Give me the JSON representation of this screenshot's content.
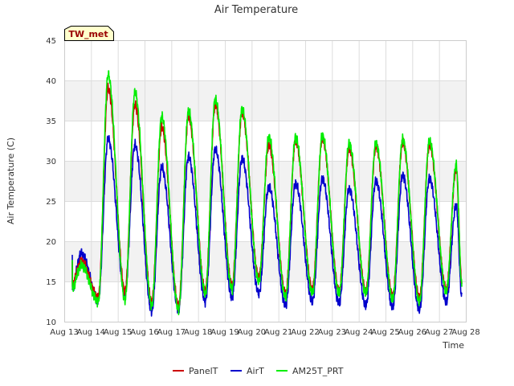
{
  "chart_data": {
    "type": "line",
    "title": "Air Temperature",
    "xlabel": "Time",
    "ylabel": "Air Temperature (C)",
    "station_tag": "TW_met",
    "ylim": [
      10,
      45
    ],
    "yticks": [
      10,
      15,
      20,
      25,
      30,
      35,
      40,
      45
    ],
    "xlim": [
      "2024-08-13",
      "2024-08-28"
    ],
    "xtick_labels": [
      "Aug 13",
      "Aug 14",
      "Aug 15",
      "Aug 16",
      "Aug 17",
      "Aug 18",
      "Aug 19",
      "Aug 20",
      "Aug 21",
      "Aug 22",
      "Aug 23",
      "Aug 24",
      "Aug 25",
      "Aug 26",
      "Aug 27",
      "Aug 28"
    ],
    "grid": true,
    "alternating_bands": true,
    "legend_position": "bottom-center",
    "day_start": "2024-08-13",
    "daily": [
      {
        "date": "2024-08-13",
        "min_air": 14.0,
        "max_air": 18.5,
        "min_panel": 14.5,
        "max_panel": 17.5,
        "min_am25t": 14.0,
        "max_am25t": 17.0
      },
      {
        "date": "2024-08-14",
        "min_air": 12.7,
        "max_air": 32.7,
        "min_panel": 13.0,
        "max_panel": 39.0,
        "min_am25t": 12.5,
        "max_am25t": 40.7
      },
      {
        "date": "2024-08-15",
        "min_air": 13.5,
        "max_air": 32.0,
        "min_panel": 13.8,
        "max_panel": 37.0,
        "min_am25t": 12.7,
        "max_am25t": 38.5
      },
      {
        "date": "2024-08-16",
        "min_air": 11.3,
        "max_air": 29.2,
        "min_panel": 12.5,
        "max_panel": 34.2,
        "min_am25t": 12.0,
        "max_am25t": 35.5
      },
      {
        "date": "2024-08-17",
        "min_air": 11.5,
        "max_air": 30.5,
        "min_panel": 12.0,
        "max_panel": 35.5,
        "min_am25t": 11.5,
        "max_am25t": 36.2
      },
      {
        "date": "2024-08-18",
        "min_air": 12.5,
        "max_air": 31.5,
        "min_panel": 13.8,
        "max_panel": 37.0,
        "min_am25t": 13.5,
        "max_am25t": 37.7
      },
      {
        "date": "2024-08-19",
        "min_air": 13.0,
        "max_air": 30.3,
        "min_panel": 14.5,
        "max_panel": 36.0,
        "min_am25t": 14.0,
        "max_am25t": 36.5
      },
      {
        "date": "2024-08-20",
        "min_air": 13.5,
        "max_air": 26.8,
        "min_panel": 15.5,
        "max_panel": 32.0,
        "min_am25t": 15.0,
        "max_am25t": 33.0
      },
      {
        "date": "2024-08-21",
        "min_air": 12.0,
        "max_air": 27.2,
        "min_panel": 13.5,
        "max_panel": 32.5,
        "min_am25t": 13.0,
        "max_am25t": 33.0
      },
      {
        "date": "2024-08-22",
        "min_air": 12.5,
        "max_air": 27.8,
        "min_panel": 14.0,
        "max_panel": 32.8,
        "min_am25t": 13.5,
        "max_am25t": 33.2
      },
      {
        "date": "2024-08-23",
        "min_air": 12.3,
        "max_air": 26.5,
        "min_panel": 13.8,
        "max_panel": 31.5,
        "min_am25t": 13.5,
        "max_am25t": 32.2
      },
      {
        "date": "2024-08-24",
        "min_air": 12.0,
        "max_air": 27.5,
        "min_panel": 13.8,
        "max_panel": 31.8,
        "min_am25t": 13.5,
        "max_am25t": 32.2
      },
      {
        "date": "2024-08-25",
        "min_air": 11.8,
        "max_air": 28.2,
        "min_panel": 13.2,
        "max_panel": 32.3,
        "min_am25t": 12.8,
        "max_am25t": 32.7
      },
      {
        "date": "2024-08-26",
        "min_air": 11.5,
        "max_air": 27.8,
        "min_panel": 13.0,
        "max_panel": 32.0,
        "min_am25t": 12.5,
        "max_am25t": 32.5
      },
      {
        "date": "2024-08-27",
        "min_air": 12.5,
        "max_air": 24.5,
        "min_panel": 14.0,
        "max_panel": 29.0,
        "min_am25t": 13.8,
        "max_am25t": 29.5
      }
    ],
    "series": [
      {
        "name": "PanelT",
        "color": "#cc0000",
        "min_key": "min_panel",
        "max_key": "max_panel",
        "end_value": 15.0
      },
      {
        "name": "AirT",
        "color": "#0000cc",
        "min_key": "min_air",
        "max_key": "max_air",
        "end_value": 13.2
      },
      {
        "name": "AM25T_PRT",
        "color": "#00ee00",
        "min_key": "min_am25t",
        "max_key": "max_am25t",
        "end_value": 14.6
      }
    ]
  }
}
